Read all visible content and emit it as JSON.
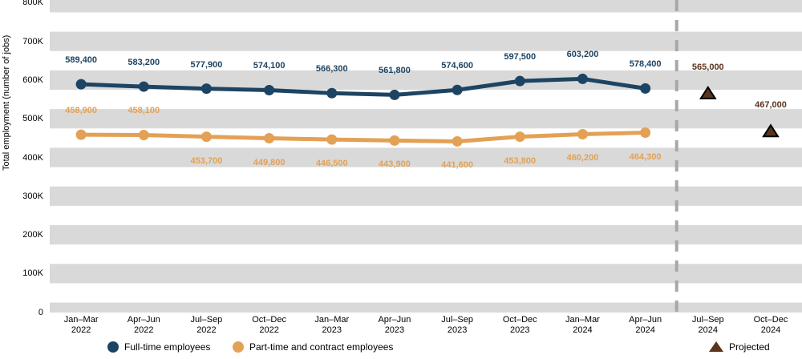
{
  "chart_data": {
    "type": "line",
    "title": "",
    "xlabel": "",
    "ylabel": "Total employment (number of jobs)",
    "x_categories": [
      {
        "line1": "Jan–Mar",
        "line2": "2022"
      },
      {
        "line1": "Apr–Jun",
        "line2": "2022"
      },
      {
        "line1": "Jul–Sep",
        "line2": "2022"
      },
      {
        "line1": "Oct–Dec",
        "line2": "2022"
      },
      {
        "line1": "Jan–Mar",
        "line2": "2023"
      },
      {
        "line1": "Apr–Jun",
        "line2": "2023"
      },
      {
        "line1": "Jul–Sep",
        "line2": "2023"
      },
      {
        "line1": "Oct–Dec",
        "line2": "2023"
      },
      {
        "line1": "Jan–Mar",
        "line2": "2024"
      },
      {
        "line1": "Apr–Jun",
        "line2": "2024"
      },
      {
        "line1": "Jul–Sep",
        "line2": "2024"
      },
      {
        "line1": "Oct–Dec",
        "line2": "2024"
      }
    ],
    "y_axis": {
      "min": 0,
      "max": 800000,
      "tick_step": 100000,
      "tick_labels_top_to_bottom": [
        "800K",
        "700K",
        "600K",
        "500K",
        "400K",
        "300K",
        "200K",
        "100K",
        "0"
      ]
    },
    "grid": {
      "band_gray": "#d9d9d9",
      "band_white": "#ffffff",
      "style": "alternating horizontal bands"
    },
    "projection_divider": {
      "after_category_index": 9,
      "color": "#a8a8a8",
      "style": "dashed vertical line"
    },
    "series": [
      {
        "name": "Full-time employees",
        "color": "#1d4463",
        "label_positions": [
          "above",
          "above",
          "above",
          "above",
          "above",
          "above",
          "above",
          "above",
          "above",
          "above"
        ],
        "values": [
          589400,
          583200,
          577900,
          574100,
          566300,
          561800,
          574600,
          597500,
          603200,
          578400
        ],
        "labels": [
          "589,400",
          "583,200",
          "577,900",
          "574,100",
          "566,300",
          "561,800",
          "574,600",
          "597,500",
          "603,200",
          "578,400"
        ]
      },
      {
        "name": "Part-time and contract employees",
        "color": "#e3a155",
        "label_positions": [
          "above",
          "above",
          "below",
          "below",
          "below",
          "below",
          "below",
          "below",
          "below",
          "below"
        ],
        "values": [
          458900,
          458100,
          453700,
          449800,
          446500,
          443900,
          441600,
          453800,
          460200,
          464300
        ],
        "labels": [
          "458,900",
          "458,100",
          "453,700",
          "449,800",
          "446,500",
          "443,900",
          "441,600",
          "453,800",
          "460,200",
          "464,300"
        ]
      }
    ],
    "projected_points": [
      {
        "series": "Full-time employees",
        "category_index": 10,
        "value": 565000,
        "label": "565,000",
        "marker": "triangle",
        "color": "#5a341d"
      },
      {
        "series": "Part-time and contract employees",
        "category_index": 11,
        "value": 467000,
        "label": "467,000",
        "marker": "triangle",
        "color": "#5a341d"
      }
    ],
    "legend": [
      {
        "label": "Full-time employees",
        "marker": "circle",
        "color": "#1d4463"
      },
      {
        "label": "Part-time and contract employees",
        "marker": "circle",
        "color": "#e3a155"
      },
      {
        "label": "Projected",
        "marker": "triangle",
        "color": "#5a341d"
      }
    ],
    "legend_x_positions": [
      134,
      290,
      884
    ]
  }
}
